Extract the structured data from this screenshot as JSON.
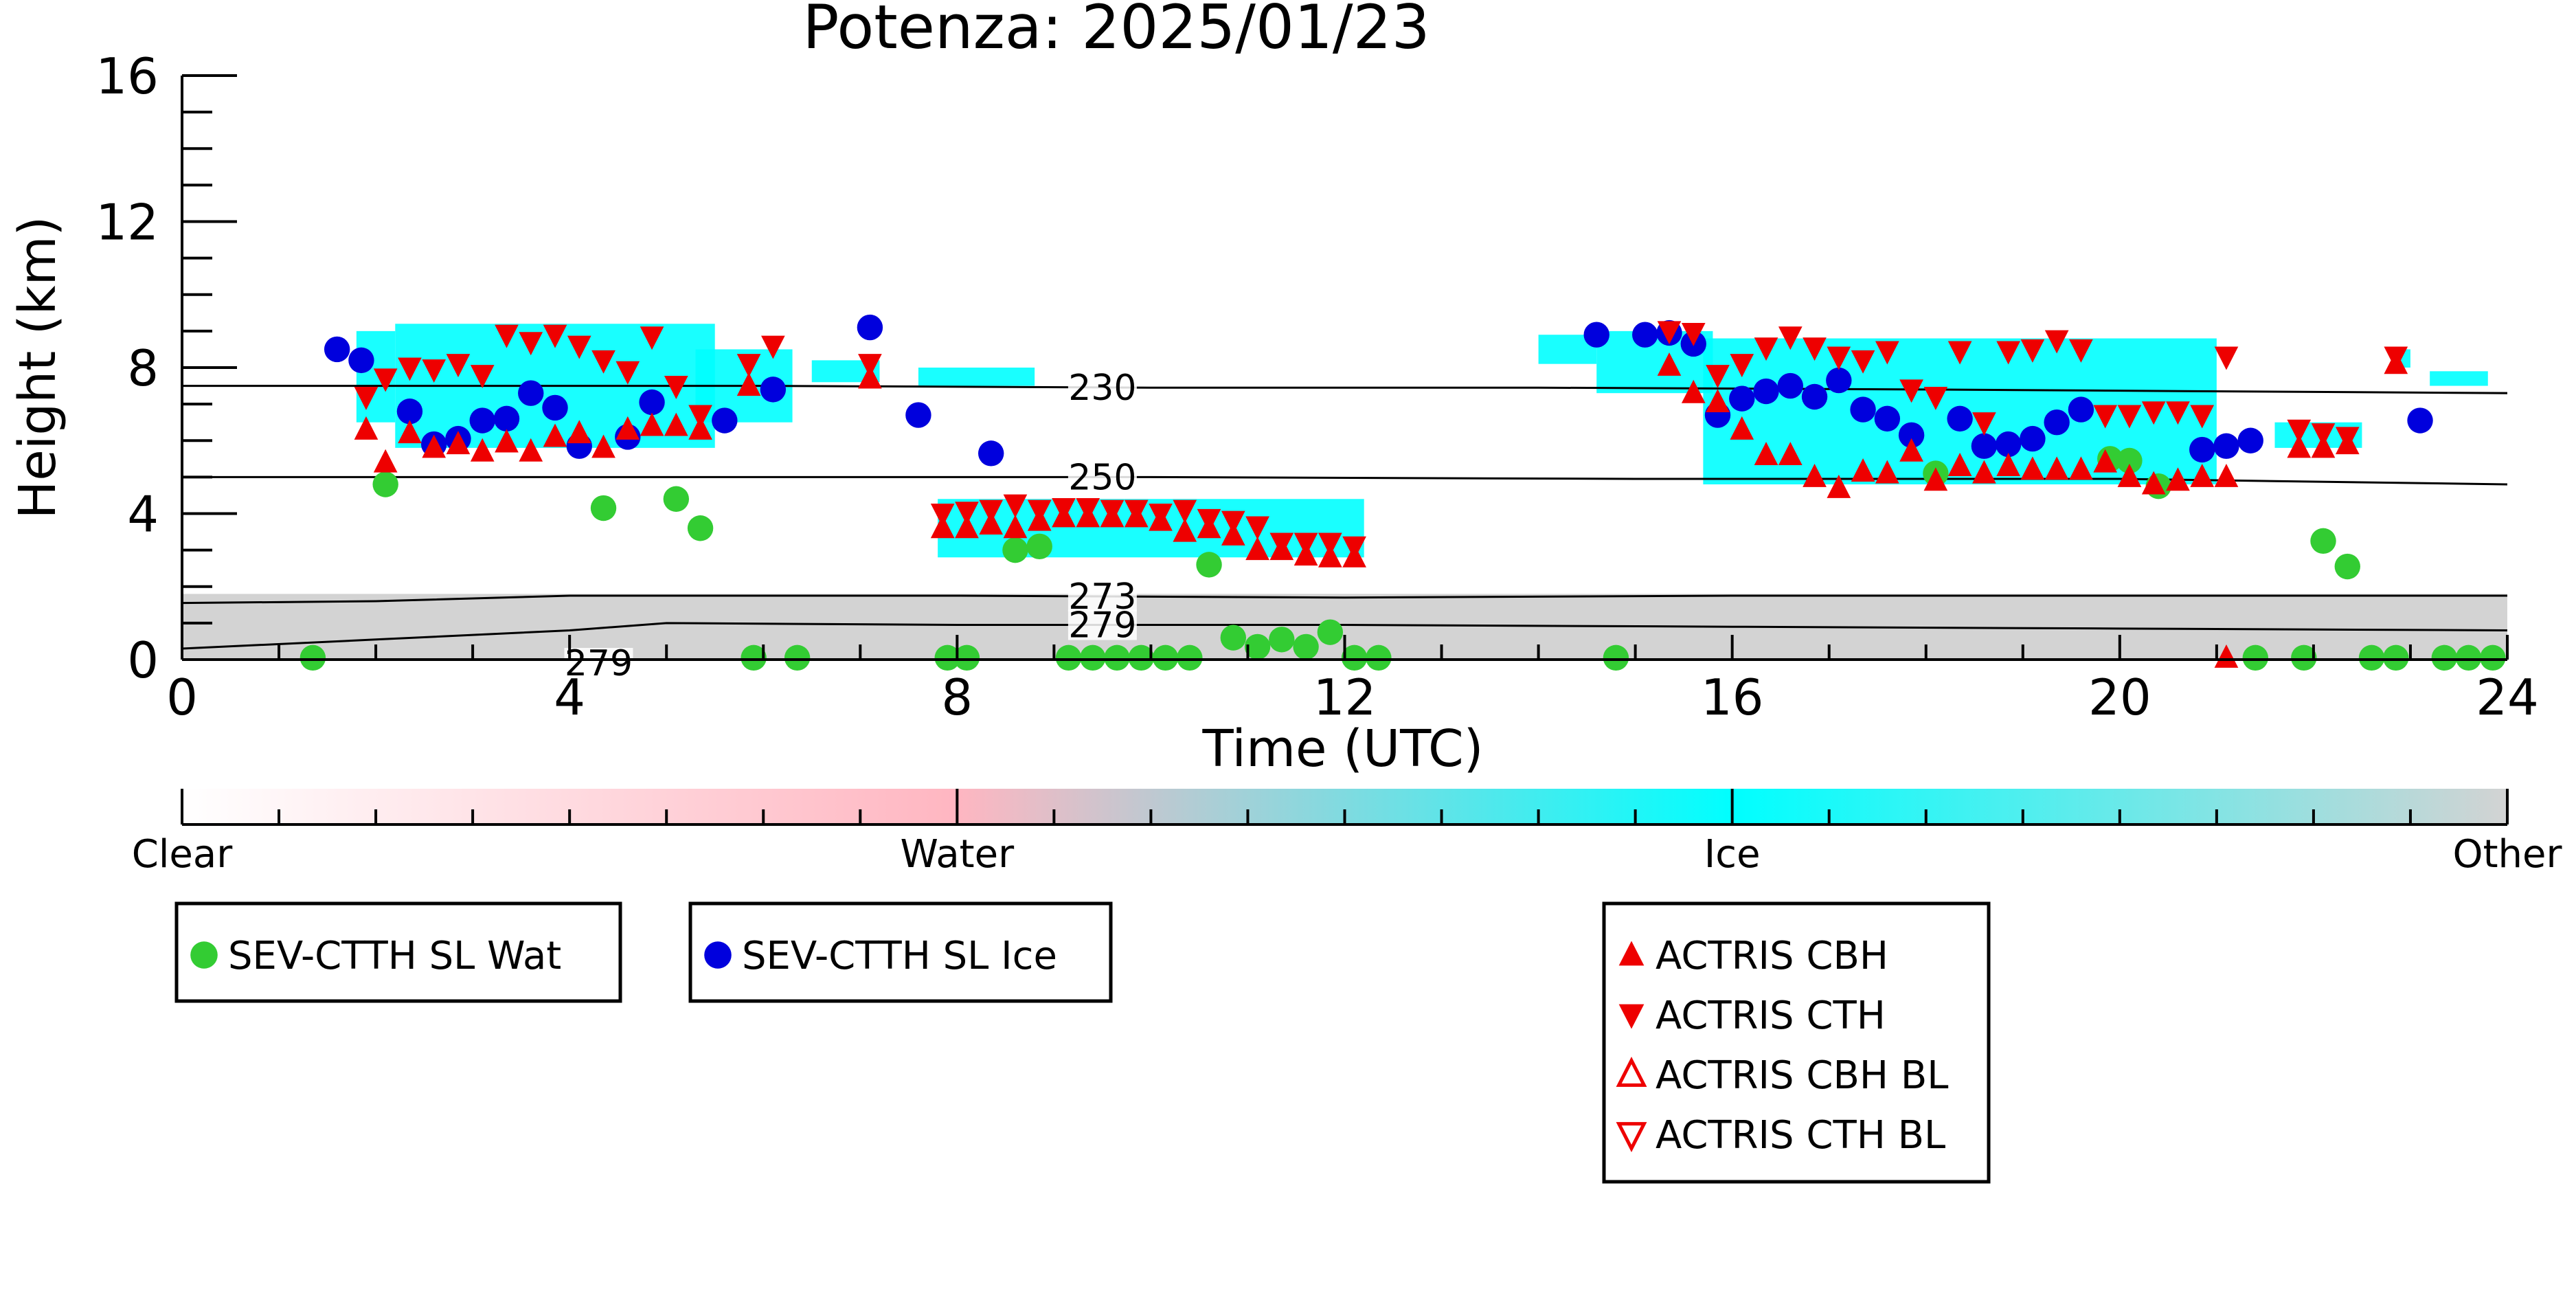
{
  "chart_data": {
    "type": "scatter",
    "title": "Potenza: 2025/01/23",
    "xlabel": "Time (UTC)",
    "ylabel": "Height (km)",
    "xlim": [
      0,
      24
    ],
    "ylim": [
      0,
      16
    ],
    "x_ticks": [
      "0",
      "4",
      "8",
      "12",
      "16",
      "20",
      "24"
    ],
    "y_ticks": [
      "0",
      "4",
      "8",
      "12",
      "16"
    ],
    "contours": [
      {
        "label": "230",
        "points": [
          [
            0,
            7.5
          ],
          [
            6,
            7.5
          ],
          [
            10,
            7.45
          ],
          [
            14,
            7.45
          ],
          [
            18,
            7.4
          ],
          [
            24,
            7.3
          ]
        ],
        "label_x": 9.5
      },
      {
        "label": "250",
        "points": [
          [
            0,
            5.0
          ],
          [
            6,
            5.0
          ],
          [
            10,
            5.0
          ],
          [
            15,
            4.95
          ],
          [
            20,
            4.95
          ],
          [
            24,
            4.8
          ]
        ],
        "label_x": 9.5
      },
      {
        "label": "273",
        "points": [
          [
            0,
            1.55
          ],
          [
            2,
            1.6
          ],
          [
            4,
            1.75
          ],
          [
            8,
            1.75
          ],
          [
            12,
            1.7
          ],
          [
            16,
            1.75
          ],
          [
            20,
            1.75
          ],
          [
            24,
            1.75
          ]
        ],
        "label_x": 9.5
      },
      {
        "label": "279",
        "points": [
          [
            0,
            0.3
          ],
          [
            2,
            0.55
          ],
          [
            4,
            0.8
          ],
          [
            5,
            1.0
          ],
          [
            8,
            0.95
          ],
          [
            12,
            0.95
          ],
          [
            16,
            0.9
          ],
          [
            20,
            0.85
          ],
          [
            24,
            0.8
          ]
        ],
        "label_x": 9.5
      },
      {
        "label": "279",
        "points": [],
        "label_x": 4.3
      }
    ],
    "regions": {
      "ice": [
        [
          1.8,
          2.2,
          6.5,
          9.0
        ],
        [
          2.2,
          5.5,
          5.8,
          9.2
        ],
        [
          5.3,
          6.3,
          6.5,
          8.5
        ],
        [
          6.5,
          7.2,
          7.6,
          8.2
        ],
        [
          7.6,
          8.8,
          7.5,
          8.0
        ],
        [
          7.8,
          12.2,
          2.8,
          4.4
        ],
        [
          14.0,
          14.6,
          8.1,
          8.9
        ],
        [
          14.6,
          15.8,
          7.3,
          9.0
        ],
        [
          15.7,
          21.0,
          4.8,
          8.8
        ],
        [
          21.6,
          22.5,
          5.8,
          6.5
        ],
        [
          22.8,
          23.0,
          8.0,
          8.5
        ],
        [
          23.2,
          23.8,
          7.5,
          7.9
        ]
      ],
      "other": [
        [
          0,
          24,
          0,
          1.8
        ]
      ]
    },
    "series": [
      {
        "name": "SEV-CTTH SL Wat",
        "color": "#33cc33",
        "marker": "circle",
        "points": [
          [
            1.35,
            0.05
          ],
          [
            2.1,
            4.8
          ],
          [
            4.35,
            4.15
          ],
          [
            5.1,
            4.4
          ],
          [
            5.35,
            3.6
          ],
          [
            5.9,
            0.05
          ],
          [
            6.35,
            0.05
          ],
          [
            7.9,
            0.05
          ],
          [
            8.1,
            0.05
          ],
          [
            8.6,
            3.0
          ],
          [
            8.85,
            3.1
          ],
          [
            9.15,
            0.05
          ],
          [
            9.4,
            0.05
          ],
          [
            9.65,
            0.05
          ],
          [
            9.9,
            0.05
          ],
          [
            10.15,
            0.05
          ],
          [
            10.4,
            0.05
          ],
          [
            10.6,
            2.6
          ],
          [
            10.85,
            0.6
          ],
          [
            11.1,
            0.35
          ],
          [
            11.35,
            0.55
          ],
          [
            11.6,
            0.35
          ],
          [
            11.85,
            0.75
          ],
          [
            12.1,
            0.05
          ],
          [
            12.35,
            0.05
          ],
          [
            14.8,
            0.05
          ],
          [
            18.1,
            5.1
          ],
          [
            19.9,
            5.5
          ],
          [
            20.1,
            5.45
          ],
          [
            20.4,
            4.75
          ],
          [
            21.4,
            0.05
          ],
          [
            21.9,
            0.05
          ],
          [
            22.1,
            3.25
          ],
          [
            22.35,
            2.55
          ],
          [
            22.6,
            0.05
          ],
          [
            22.85,
            0.05
          ],
          [
            23.35,
            0.05
          ],
          [
            23.6,
            0.05
          ],
          [
            23.85,
            0.05
          ]
        ]
      },
      {
        "name": "SEV-CTTH SL Ice",
        "color": "#0000dd",
        "marker": "circle",
        "points": [
          [
            1.6,
            8.5
          ],
          [
            1.85,
            8.2
          ],
          [
            2.35,
            6.8
          ],
          [
            2.6,
            5.9
          ],
          [
            2.85,
            6.05
          ],
          [
            3.1,
            6.55
          ],
          [
            3.35,
            6.6
          ],
          [
            3.6,
            7.3
          ],
          [
            3.85,
            6.9
          ],
          [
            4.1,
            5.85
          ],
          [
            4.6,
            6.1
          ],
          [
            4.85,
            7.05
          ],
          [
            5.6,
            6.55
          ],
          [
            6.1,
            7.4
          ],
          [
            7.1,
            9.1
          ],
          [
            7.6,
            6.7
          ],
          [
            8.35,
            5.65
          ],
          [
            14.6,
            8.9
          ],
          [
            15.1,
            8.9
          ],
          [
            15.35,
            8.95
          ],
          [
            15.6,
            8.65
          ],
          [
            15.85,
            6.7
          ],
          [
            16.1,
            7.15
          ],
          [
            16.35,
            7.35
          ],
          [
            16.6,
            7.5
          ],
          [
            16.85,
            7.2
          ],
          [
            17.1,
            7.65
          ],
          [
            17.35,
            6.85
          ],
          [
            17.6,
            6.6
          ],
          [
            17.85,
            6.15
          ],
          [
            18.35,
            6.6
          ],
          [
            18.6,
            5.85
          ],
          [
            18.85,
            5.9
          ],
          [
            19.1,
            6.05
          ],
          [
            19.35,
            6.5
          ],
          [
            19.6,
            6.85
          ],
          [
            20.85,
            5.75
          ],
          [
            21.1,
            5.85
          ],
          [
            21.35,
            6.0
          ],
          [
            23.1,
            6.55
          ]
        ]
      },
      {
        "name": "ACTRIS CBH",
        "color": "#ee0000",
        "marker": "triangle-up",
        "points": [
          [
            1.9,
            6.3
          ],
          [
            2.1,
            5.4
          ],
          [
            2.35,
            6.2
          ],
          [
            2.6,
            5.8
          ],
          [
            2.85,
            5.9
          ],
          [
            3.1,
            5.7
          ],
          [
            3.35,
            5.95
          ],
          [
            3.6,
            5.7
          ],
          [
            3.85,
            6.1
          ],
          [
            4.1,
            6.2
          ],
          [
            4.35,
            5.8
          ],
          [
            4.6,
            6.3
          ],
          [
            4.85,
            6.4
          ],
          [
            5.1,
            6.4
          ],
          [
            5.35,
            6.3
          ],
          [
            5.85,
            7.5
          ],
          [
            7.1,
            7.7
          ],
          [
            7.85,
            3.6
          ],
          [
            8.1,
            3.6
          ],
          [
            8.35,
            3.7
          ],
          [
            8.6,
            3.6
          ],
          [
            8.85,
            3.8
          ],
          [
            9.1,
            3.9
          ],
          [
            9.35,
            3.9
          ],
          [
            9.6,
            3.9
          ],
          [
            9.85,
            3.9
          ],
          [
            10.1,
            3.8
          ],
          [
            10.35,
            3.5
          ],
          [
            10.6,
            3.6
          ],
          [
            10.85,
            3.4
          ],
          [
            11.1,
            3.0
          ],
          [
            11.35,
            3.0
          ],
          [
            11.6,
            2.85
          ],
          [
            11.85,
            2.8
          ],
          [
            12.1,
            2.8
          ],
          [
            15.35,
            8.05
          ],
          [
            15.6,
            7.3
          ],
          [
            15.85,
            7.05
          ],
          [
            16.1,
            6.3
          ],
          [
            16.35,
            5.6
          ],
          [
            16.6,
            5.6
          ],
          [
            16.85,
            5.0
          ],
          [
            17.1,
            4.7
          ],
          [
            17.35,
            5.15
          ],
          [
            17.6,
            5.1
          ],
          [
            17.85,
            5.7
          ],
          [
            18.1,
            4.9
          ],
          [
            18.35,
            5.3
          ],
          [
            18.6,
            5.1
          ],
          [
            18.85,
            5.3
          ],
          [
            19.1,
            5.2
          ],
          [
            19.35,
            5.2
          ],
          [
            19.6,
            5.2
          ],
          [
            19.85,
            5.4
          ],
          [
            20.1,
            5.0
          ],
          [
            20.35,
            4.8
          ],
          [
            20.6,
            4.9
          ],
          [
            20.85,
            5.0
          ],
          [
            21.1,
            5.0
          ],
          [
            21.1,
            0.05
          ],
          [
            21.85,
            5.8
          ],
          [
            22.1,
            5.8
          ],
          [
            22.35,
            5.9
          ],
          [
            22.85,
            8.1
          ]
        ]
      },
      {
        "name": "ACTRIS CTH",
        "color": "#ee0000",
        "marker": "triangle-down",
        "points": [
          [
            1.9,
            7.2
          ],
          [
            2.1,
            7.7
          ],
          [
            2.35,
            8.0
          ],
          [
            2.6,
            7.95
          ],
          [
            2.85,
            8.1
          ],
          [
            3.1,
            7.8
          ],
          [
            3.35,
            8.9
          ],
          [
            3.6,
            8.7
          ],
          [
            3.85,
            8.9
          ],
          [
            4.1,
            8.6
          ],
          [
            4.35,
            8.2
          ],
          [
            4.6,
            7.9
          ],
          [
            4.85,
            8.85
          ],
          [
            5.1,
            7.5
          ],
          [
            5.35,
            6.7
          ],
          [
            5.85,
            8.1
          ],
          [
            6.1,
            8.6
          ],
          [
            7.1,
            8.1
          ],
          [
            7.85,
            4.0
          ],
          [
            8.1,
            4.05
          ],
          [
            8.35,
            4.1
          ],
          [
            8.6,
            4.25
          ],
          [
            8.85,
            4.1
          ],
          [
            9.1,
            4.15
          ],
          [
            9.35,
            4.15
          ],
          [
            9.6,
            4.1
          ],
          [
            9.85,
            4.1
          ],
          [
            10.1,
            4.0
          ],
          [
            10.35,
            4.1
          ],
          [
            10.6,
            3.85
          ],
          [
            10.85,
            3.8
          ],
          [
            11.1,
            3.65
          ],
          [
            11.35,
            3.2
          ],
          [
            11.6,
            3.2
          ],
          [
            11.85,
            3.2
          ],
          [
            12.1,
            3.1
          ],
          [
            15.35,
            9.0
          ],
          [
            15.6,
            8.95
          ],
          [
            15.85,
            7.8
          ],
          [
            16.1,
            8.1
          ],
          [
            16.35,
            8.55
          ],
          [
            16.6,
            8.85
          ],
          [
            16.85,
            8.55
          ],
          [
            17.1,
            8.3
          ],
          [
            17.35,
            8.2
          ],
          [
            17.6,
            8.45
          ],
          [
            17.85,
            7.4
          ],
          [
            18.1,
            7.2
          ],
          [
            18.35,
            8.45
          ],
          [
            18.6,
            6.5
          ],
          [
            18.85,
            8.45
          ],
          [
            19.1,
            8.5
          ],
          [
            19.35,
            8.75
          ],
          [
            19.6,
            8.5
          ],
          [
            19.85,
            6.7
          ],
          [
            20.1,
            6.7
          ],
          [
            20.35,
            6.8
          ],
          [
            20.6,
            6.8
          ],
          [
            20.85,
            6.7
          ],
          [
            21.1,
            8.3
          ],
          [
            21.85,
            6.3
          ],
          [
            22.1,
            6.2
          ],
          [
            22.35,
            6.1
          ],
          [
            22.85,
            8.3
          ]
        ]
      },
      {
        "name": "ACTRIS CBH BL",
        "color": "#ee0000",
        "marker": "triangle-up-open",
        "points": []
      },
      {
        "name": "ACTRIS CTH BL",
        "color": "#ee0000",
        "marker": "triangle-down-open",
        "points": []
      }
    ],
    "colorbar": {
      "labels": [
        "Clear",
        "Water",
        "Ice",
        "Other"
      ],
      "colors": [
        "#ffffff",
        "#ffb6c1",
        "#00ffff",
        "#d3d3d3"
      ]
    },
    "legend_placement": "bottom"
  }
}
